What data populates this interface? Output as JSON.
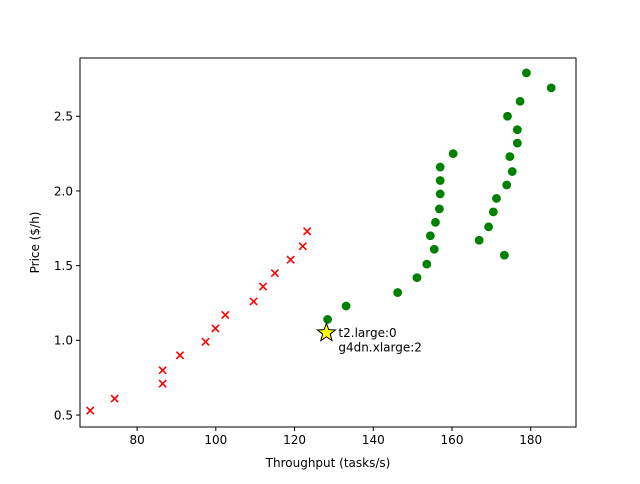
{
  "chart_data": {
    "type": "scatter",
    "xlabel": "Throughput (tasks/s)",
    "ylabel": "Price ($/h)",
    "xlim": [
      65.5,
      191.5
    ],
    "ylim": [
      0.42,
      2.89
    ],
    "xticks": [
      80,
      100,
      120,
      140,
      160,
      180
    ],
    "yticks": [
      0.5,
      1.0,
      1.5,
      2.0,
      2.5
    ],
    "xtick_labels": [
      "80",
      "100",
      "120",
      "140",
      "160",
      "180"
    ],
    "ytick_labels": [
      "0.5",
      "1.0",
      "1.5",
      "2.0",
      "2.5"
    ],
    "grid": false,
    "series": [
      {
        "marker": "x",
        "color": "#ff0000",
        "points": [
          [
            68.1,
            0.53
          ],
          [
            74.3,
            0.61
          ],
          [
            86.5,
            0.71
          ],
          [
            86.5,
            0.8
          ],
          [
            90.9,
            0.9
          ],
          [
            97.4,
            0.99
          ],
          [
            99.9,
            1.08
          ],
          [
            102.4,
            1.17
          ],
          [
            109.6,
            1.26
          ],
          [
            112.0,
            1.36
          ],
          [
            115.0,
            1.45
          ],
          [
            119.0,
            1.54
          ],
          [
            122.1,
            1.63
          ],
          [
            123.2,
            1.73
          ]
        ]
      },
      {
        "marker": "circle",
        "color": "#008000",
        "points": [
          [
            128.4,
            1.14
          ],
          [
            133.1,
            1.23
          ],
          [
            146.2,
            1.32
          ],
          [
            151.1,
            1.42
          ],
          [
            153.6,
            1.51
          ],
          [
            155.5,
            1.61
          ],
          [
            154.5,
            1.7
          ],
          [
            155.8,
            1.79
          ],
          [
            156.8,
            1.88
          ],
          [
            157.0,
            1.98
          ],
          [
            157.0,
            2.07
          ],
          [
            157.0,
            2.16
          ],
          [
            160.3,
            2.25
          ],
          [
            173.3,
            1.57
          ],
          [
            166.9,
            1.67
          ],
          [
            169.3,
            1.76
          ],
          [
            170.5,
            1.86
          ],
          [
            171.3,
            1.95
          ],
          [
            173.9,
            2.04
          ],
          [
            175.3,
            2.13
          ],
          [
            174.7,
            2.23
          ],
          [
            176.6,
            2.32
          ],
          [
            176.6,
            2.41
          ],
          [
            174.1,
            2.5
          ],
          [
            177.3,
            2.6
          ],
          [
            185.2,
            2.69
          ],
          [
            178.9,
            2.79
          ]
        ]
      }
    ],
    "highlight": {
      "marker": "star",
      "color": "#ffff00",
      "x": 128.1,
      "y": 1.05,
      "label_lines": [
        "t2.large:0",
        "g4dn.xlarge:2"
      ]
    }
  }
}
